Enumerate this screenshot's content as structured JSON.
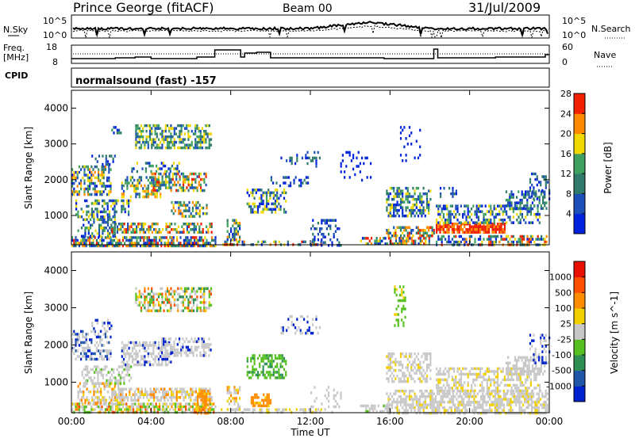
{
  "header": {
    "station": "Prince George (fitACF)",
    "beam": "Beam 00",
    "date": "31/Jul/2009"
  },
  "noise_panel": {
    "left_label": "N.Sky",
    "right_label": "N.Search",
    "left_ticks": [
      "10^5",
      "10^0"
    ],
    "right_ticks": [
      "10^5",
      "10^0"
    ]
  },
  "freq_panel": {
    "left_label_1": "Freq.",
    "left_label_2": "[MHz]",
    "right_label": "Nave",
    "left_ticks": [
      "18",
      "8"
    ],
    "right_ticks": [
      "60",
      "0"
    ]
  },
  "cpid": {
    "label": "CPID",
    "text": "normalsound (fast) -157"
  },
  "x_axis": {
    "label": "Time UT",
    "ticks": [
      "00:00",
      "04:00",
      "08:00",
      "12:00",
      "16:00",
      "20:00",
      "00:00"
    ]
  },
  "chart_data": [
    {
      "type": "heatmap",
      "title": "Power",
      "xlabel": "Time UT",
      "ylabel": "Slant Range [km]",
      "x_range_hours": [
        0,
        24
      ],
      "y_range_km": [
        180,
        4500
      ],
      "y_ticks": [
        1000,
        2000,
        3000,
        4000
      ],
      "colorbar_label": "Power [dB]",
      "colorbar_ticks": [
        "4",
        "8",
        "12",
        "16",
        "20",
        "24",
        "28"
      ],
      "colorbar_colors": [
        "#0022dd",
        "#1e4fb8",
        "#2f7a6a",
        "#3fa060",
        "#f0d800",
        "#ff8a00",
        "#f02000"
      ]
    },
    {
      "type": "heatmap",
      "title": "Velocity",
      "xlabel": "Time UT",
      "ylabel": "Slant Range [km]",
      "x_range_hours": [
        0,
        24
      ],
      "y_range_km": [
        180,
        4500
      ],
      "y_ticks": [
        1000,
        2000,
        3000,
        4000
      ],
      "colorbar_label": "Velocity [m s^-1]",
      "colorbar_ticks": [
        "1000",
        "500",
        "100",
        "25",
        "-25",
        "-100",
        "-500",
        "-1000"
      ],
      "colorbar_colors": [
        "#0022cc",
        "#2256a8",
        "#2e8f55",
        "#55c020",
        "#c8c8c8",
        "#f2d000",
        "#ff8c00",
        "#ff5000",
        "#e81000"
      ]
    }
  ],
  "colors": {
    "axis": "#000000",
    "velocity_ground": "#c8c8c8"
  }
}
